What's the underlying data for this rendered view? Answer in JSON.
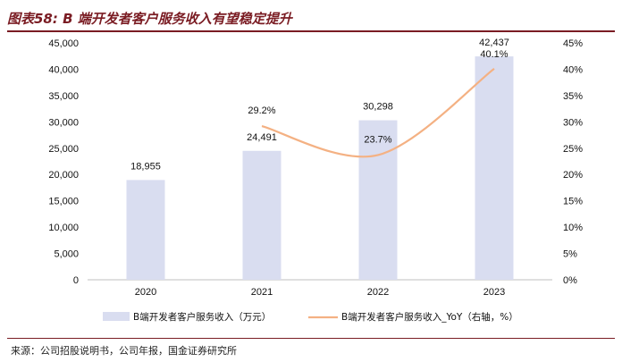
{
  "header": {
    "title": "图表58:  B 端开发者客户服务收入有望稳定提升"
  },
  "footer": {
    "source": "来源：公司招股说明书，公司年报，国金证券研究所"
  },
  "colors": {
    "bar": "#d9ddf0",
    "line": "#f4b183",
    "accent": "#7a1c23"
  },
  "chart_data": {
    "type": "bar",
    "title": "B 端开发者客户服务收入有望稳定提升",
    "categories": [
      "2020",
      "2021",
      "2022",
      "2023"
    ],
    "series": [
      {
        "name": "B端开发者客户服务收入（万元）",
        "type": "bar",
        "axis": "left",
        "values": [
          18955,
          24491,
          30298,
          42437
        ],
        "labels": [
          "18,955",
          "24,491",
          "30,298",
          "42,437"
        ]
      },
      {
        "name": "B端开发者客户服务收入_YoY（右轴，%）",
        "type": "line",
        "axis": "right",
        "x": [
          "2021",
          "2022",
          "2023"
        ],
        "values": [
          29.2,
          23.7,
          40.1
        ],
        "labels": [
          "29.2%",
          "23.7%",
          "40.1%"
        ]
      }
    ],
    "left_axis": {
      "ylim": [
        0,
        45000
      ],
      "ticks": [
        "0",
        "5,000",
        "10,000",
        "15,000",
        "20,000",
        "25,000",
        "30,000",
        "35,000",
        "40,000",
        "45,000"
      ]
    },
    "right_axis": {
      "ylim": [
        0,
        45
      ],
      "ticks": [
        "0%",
        "5%",
        "10%",
        "15%",
        "20%",
        "25%",
        "30%",
        "35%",
        "40%",
        "45%"
      ]
    },
    "legend_position": "bottom",
    "grid": false
  }
}
